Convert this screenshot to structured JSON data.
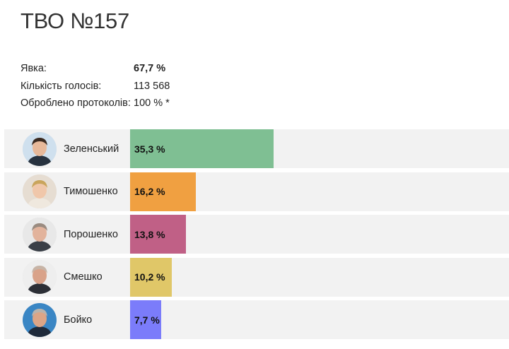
{
  "title": "ТВО №157",
  "stats": [
    {
      "label": "Явка:",
      "value": "67,7 %",
      "bold": true
    },
    {
      "label": "Кількість голосів:",
      "value": "113 568",
      "bold": false
    },
    {
      "label": "Оброблено протоколів:",
      "value": "100 % *",
      "bold": false
    }
  ],
  "chart_data": {
    "type": "bar",
    "orientation": "horizontal",
    "categories": [
      "Зеленський",
      "Тимошенко",
      "Порошенко",
      "Смешко",
      "Бойко"
    ],
    "values": [
      35.3,
      16.2,
      13.8,
      10.2,
      7.7
    ],
    "value_labels": [
      "35,3 %",
      "16,2 %",
      "13,8 %",
      "10,2 %",
      "7,7 %"
    ],
    "colors": [
      "#7fbf93",
      "#f0a041",
      "#c06086",
      "#e0c768",
      "#7b7cfa"
    ],
    "xlim": [
      0,
      100
    ],
    "grid": false,
    "title": "",
    "xlabel": "",
    "ylabel": ""
  },
  "avatars": [
    {
      "icon": "zelensky-photo-icon",
      "bg": "#cfe0ee",
      "skin": "#e7b99a",
      "hair": "#3a2a20",
      "suit": "#27323f"
    },
    {
      "icon": "tymoshenko-photo-icon",
      "bg": "#e6ddd2",
      "skin": "#f0c7aa",
      "hair": "#c9a55c",
      "suit": "#efe8de"
    },
    {
      "icon": "poroshenko-photo-icon",
      "bg": "#e8e8e8",
      "skin": "#e2b39c",
      "hair": "#9a8b80",
      "suit": "#3a3f47"
    },
    {
      "icon": "smeshko-photo-icon",
      "bg": "#eeeeee",
      "skin": "#d9a289",
      "hair": "#c7b4a6",
      "suit": "#2c2f36"
    },
    {
      "icon": "boyko-photo-icon",
      "bg": "#3a86c4",
      "skin": "#dca587",
      "hair": "#b9b3ad",
      "suit": "#1f2a3a"
    }
  ]
}
